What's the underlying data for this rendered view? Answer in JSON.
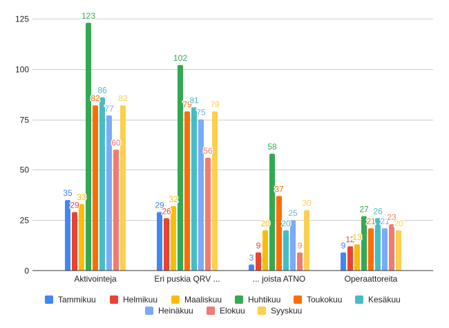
{
  "chart_data": {
    "type": "bar",
    "title": "",
    "xlabel": "",
    "ylabel": "",
    "ylim": [
      0,
      125
    ],
    "yticks": [
      0,
      25,
      50,
      75,
      100,
      125
    ],
    "grid": true,
    "legend_position": "bottom",
    "categories": [
      "Aktivointeja",
      "Eri puskia QRV ...",
      "... joista ATNO",
      "Operaattoreita"
    ],
    "series": [
      {
        "name": "Tammikuu",
        "color": "#4285F4",
        "values": [
          35,
          29,
          3,
          9
        ]
      },
      {
        "name": "Helmikuu",
        "color": "#EA4335",
        "values": [
          29,
          26,
          9,
          12
        ]
      },
      {
        "name": "Maaliskuu",
        "color": "#FBBC04",
        "values": [
          33,
          32,
          20,
          13
        ]
      },
      {
        "name": "Huhtikuu",
        "color": "#34A853",
        "values": [
          123,
          102,
          58,
          27
        ]
      },
      {
        "name": "Toukokuu",
        "color": "#FF6D01",
        "values": [
          82,
          79,
          37,
          21
        ]
      },
      {
        "name": "Kesäkuu",
        "color": "#46BDC6",
        "values": [
          86,
          81,
          20,
          26
        ]
      },
      {
        "name": "Heinäkuu",
        "color": "#7BAAF7",
        "values": [
          77,
          75,
          25,
          21
        ]
      },
      {
        "name": "Elokuu",
        "color": "#F07B72",
        "values": [
          60,
          56,
          9,
          23
        ]
      },
      {
        "name": "Syyskuu",
        "color": "#FCD04F",
        "values": [
          82,
          79,
          30,
          20
        ]
      }
    ]
  }
}
